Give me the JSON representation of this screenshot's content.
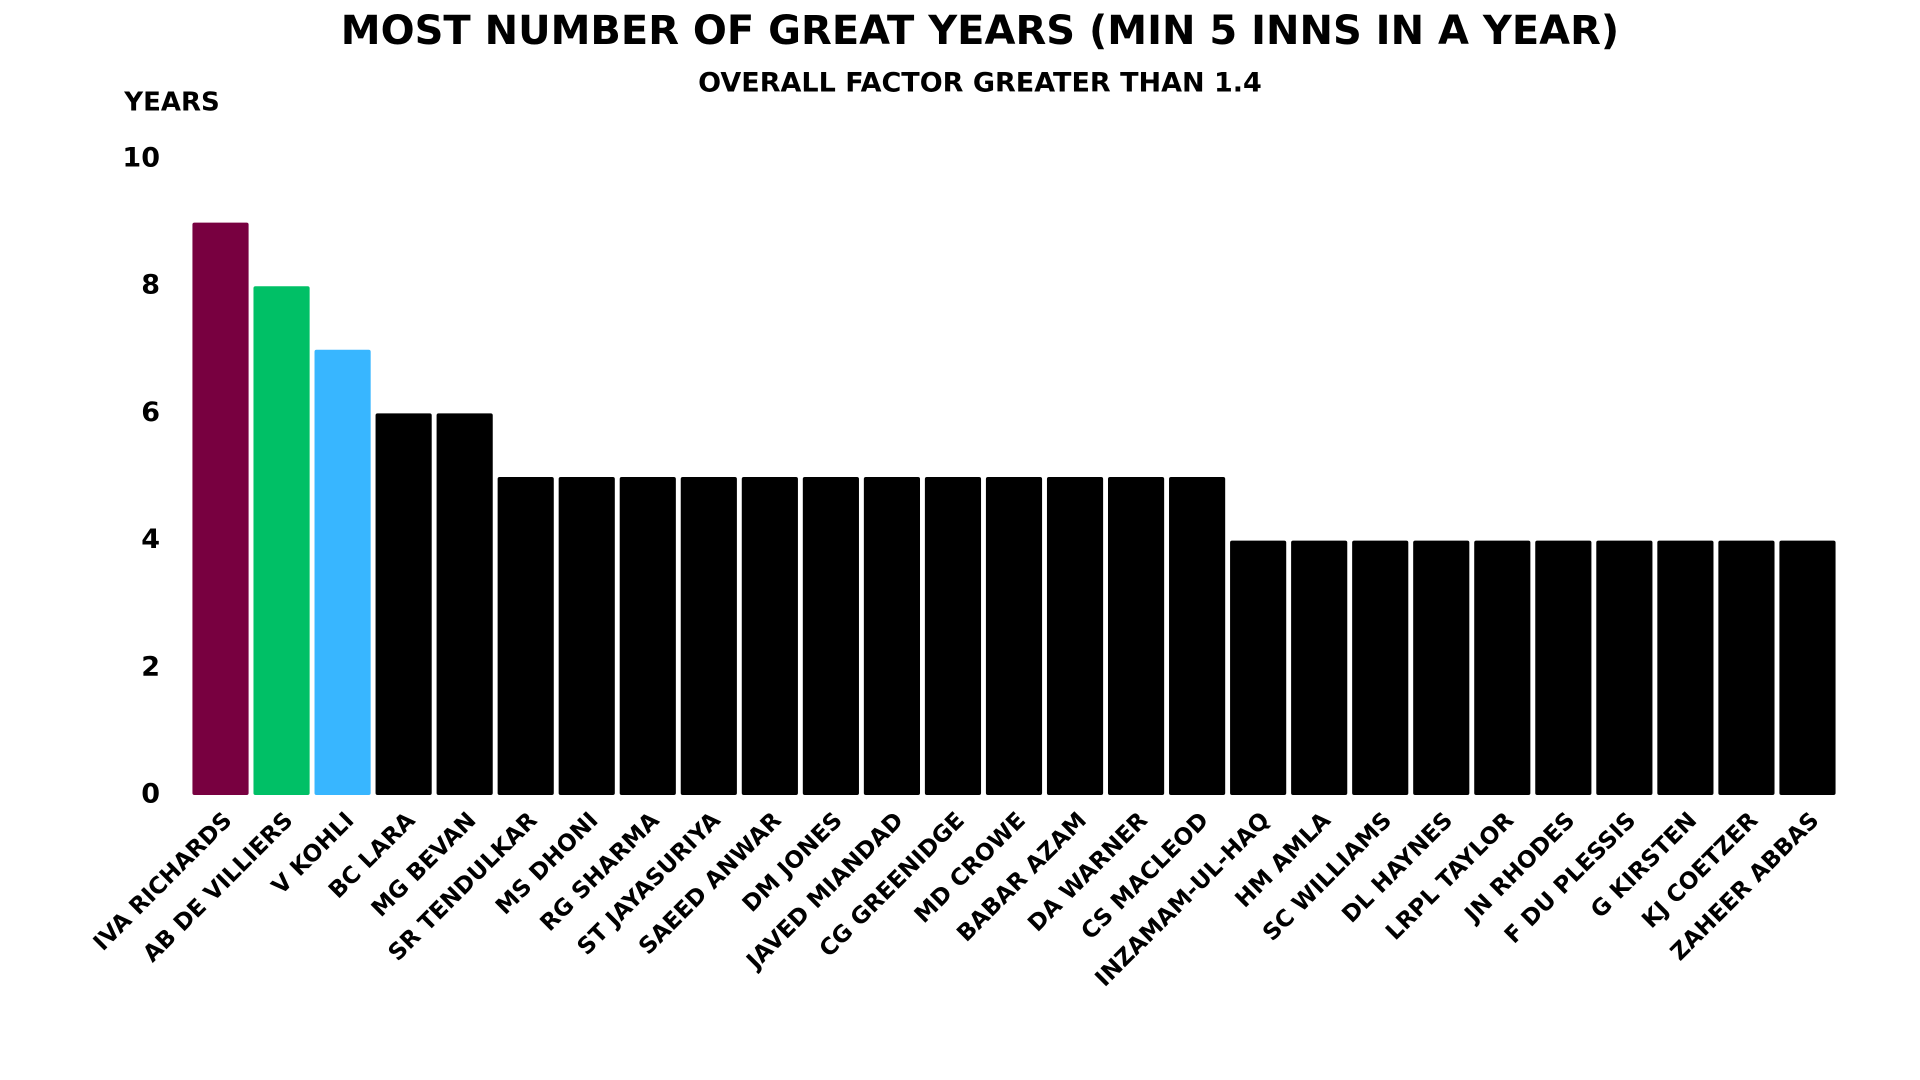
{
  "chart_data": {
    "type": "bar",
    "title": "MOST NUMBER OF GREAT YEARS  (MIN 5 INNS IN A YEAR)",
    "subtitle": "OVERALL FACTOR GREATER THAN 1.4",
    "y_label": "YEARS",
    "categories": [
      "IVA RICHARDS",
      "AB DE VILLIERS",
      "V KOHLI",
      "BC LARA",
      "MG BEVAN",
      "SR TENDULKAR",
      "MS DHONI",
      "RG SHARMA",
      "ST JAYASURIYA",
      "SAEED ANWAR",
      "DM JONES",
      "JAVED MIANDAD",
      "CG GREENIDGE",
      "MD CROWE",
      "BABAR AZAM",
      "DA WARNER",
      "CS MACLEOD",
      "INZAMAM-UL-HAQ",
      "HM AMLA",
      "SC WILLIAMS",
      "DL HAYNES",
      "LRPL TAYLOR",
      "JN RHODES",
      "F DU PLESSIS",
      "G KIRSTEN",
      "KJ COETZER",
      "ZAHEER ABBAS"
    ],
    "values": [
      9,
      8,
      7,
      6,
      6,
      5,
      5,
      5,
      5,
      5,
      5,
      5,
      5,
      5,
      5,
      5,
      5,
      4,
      4,
      4,
      4,
      4,
      4,
      4,
      4,
      4,
      4
    ],
    "colors": [
      "#780040",
      "#00c066",
      "#38b6ff",
      "#000000",
      "#000000",
      "#000000",
      "#000000",
      "#000000",
      "#000000",
      "#000000",
      "#000000",
      "#000000",
      "#000000",
      "#000000",
      "#000000",
      "#000000",
      "#000000",
      "#000000",
      "#000000",
      "#000000",
      "#000000",
      "#000000",
      "#000000",
      "#000000",
      "#000000",
      "#000000",
      "#000000"
    ],
    "ylim": [
      0,
      10
    ],
    "yticks": [
      0,
      2,
      4,
      6,
      8,
      10
    ],
    "grid": false
  }
}
